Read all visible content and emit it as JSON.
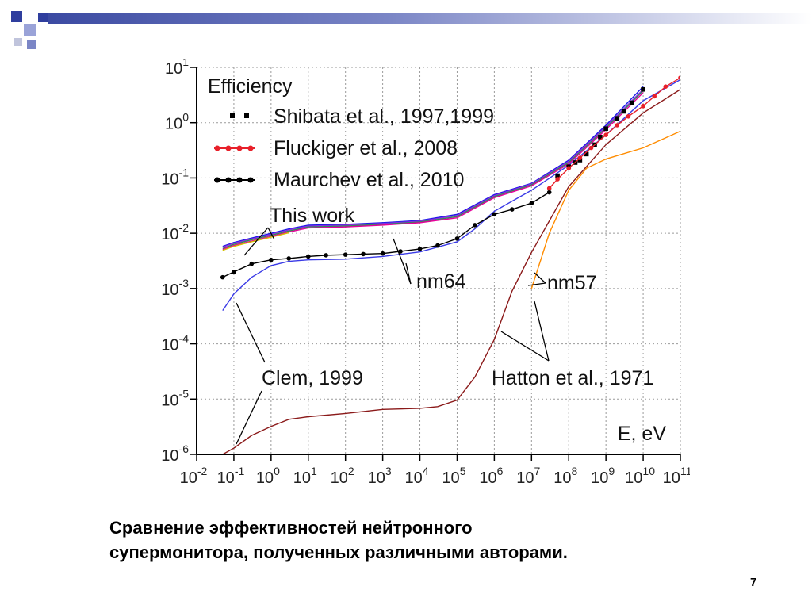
{
  "slide": {
    "caption_lines": [
      "Сравнение эффективностей нейтронного",
      "супермонитора, полученных различными авторами."
    ],
    "page_number": "7",
    "accent_color": "#2f3e9e"
  },
  "chart_data": {
    "type": "line",
    "title": "Efficiency",
    "xlabel": "E, eV",
    "ylabel": "",
    "x_scale": "log",
    "y_scale": "log",
    "xlim": [
      0.01,
      100000000000
    ],
    "ylim": [
      1e-06,
      10
    ],
    "x_ticks": [
      {
        "v": 0.01,
        "base": "10",
        "exp": "-2"
      },
      {
        "v": 0.1,
        "base": "10",
        "exp": "-1"
      },
      {
        "v": 1,
        "base": "10",
        "exp": "0"
      },
      {
        "v": 10,
        "base": "10",
        "exp": "1"
      },
      {
        "v": 100,
        "base": "10",
        "exp": "2"
      },
      {
        "v": 1000,
        "base": "10",
        "exp": "3"
      },
      {
        "v": 10000,
        "base": "10",
        "exp": "4"
      },
      {
        "v": 100000,
        "base": "10",
        "exp": "5"
      },
      {
        "v": 1000000,
        "base": "10",
        "exp": "6"
      },
      {
        "v": 10000000,
        "base": "10",
        "exp": "7"
      },
      {
        "v": 100000000,
        "base": "10",
        "exp": "8"
      },
      {
        "v": 1000000000,
        "base": "10",
        "exp": "9"
      },
      {
        "v": 10000000000,
        "base": "10",
        "exp": "10"
      },
      {
        "v": 100000000000,
        "base": "10",
        "exp": "11"
      }
    ],
    "y_ticks": [
      {
        "v": 10,
        "base": "10",
        "exp": "1"
      },
      {
        "v": 1,
        "base": "10",
        "exp": "0"
      },
      {
        "v": 0.1,
        "base": "10",
        "exp": "-1"
      },
      {
        "v": 0.01,
        "base": "10",
        "exp": "-2"
      },
      {
        "v": 0.001,
        "base": "10",
        "exp": "-3"
      },
      {
        "v": 0.0001,
        "base": "10",
        "exp": "-4"
      },
      {
        "v": 1e-05,
        "base": "10",
        "exp": "-5"
      },
      {
        "v": 1e-06,
        "base": "10",
        "exp": "-6"
      }
    ],
    "legend": [
      {
        "label": "Shibata et al., 1997,1999",
        "color": "#000000",
        "marker": "square"
      },
      {
        "label": "Fluckiger et al., 2008",
        "color": "#e8202a",
        "marker": "circle"
      },
      {
        "label": "Maurchev et al., 2010",
        "color": "#000000",
        "marker": "circle"
      }
    ],
    "series": [
      {
        "color": "#1a1ae6",
        "marker": "none",
        "x": [
          0.05,
          0.1,
          0.3,
          1,
          3,
          10,
          100,
          1000,
          10000,
          100000,
          1000000,
          10000000,
          100000000,
          1000000000,
          10000000000
        ],
        "y": [
          0.0058,
          0.0068,
          0.0082,
          0.01,
          0.012,
          0.014,
          0.0145,
          0.0155,
          0.017,
          0.022,
          0.05,
          0.08,
          0.21,
          0.9,
          4.5
        ]
      },
      {
        "color": "#8a2be2",
        "marker": "none",
        "x": [
          0.05,
          0.1,
          0.3,
          1,
          3,
          10,
          100,
          1000,
          10000,
          100000,
          1000000,
          10000000,
          100000000,
          1000000000,
          10000000000
        ],
        "y": [
          0.0056,
          0.0066,
          0.0079,
          0.0096,
          0.0115,
          0.0135,
          0.014,
          0.015,
          0.0165,
          0.021,
          0.048,
          0.078,
          0.2,
          0.85,
          4
        ]
      },
      {
        "color": "#2e8b57",
        "marker": "none",
        "x": [
          0.05,
          0.1,
          0.3,
          1,
          3,
          10,
          100,
          1000,
          10000,
          100000,
          1000000,
          10000000,
          100000000,
          1000000000,
          10000000000
        ],
        "y": [
          0.0053,
          0.0063,
          0.0076,
          0.0092,
          0.011,
          0.013,
          0.0135,
          0.0145,
          0.016,
          0.02,
          0.046,
          0.075,
          0.19,
          0.8,
          3.8
        ]
      },
      {
        "color": "#e60099",
        "marker": "none",
        "x": [
          0.05,
          0.1,
          0.3,
          1,
          3,
          10,
          100,
          1000,
          10000,
          100000,
          1000000,
          10000000,
          100000000,
          1000000000,
          10000000000
        ],
        "y": [
          0.0051,
          0.006,
          0.0072,
          0.0088,
          0.0105,
          0.0125,
          0.013,
          0.014,
          0.0155,
          0.019,
          0.044,
          0.072,
          0.18,
          0.75,
          3.5
        ]
      },
      {
        "color": "#d4c000",
        "marker": "none",
        "x": [
          0.05,
          0.1,
          0.3,
          1,
          3
        ],
        "y": [
          0.0049,
          0.0058,
          0.007,
          0.0085,
          0.0102
        ]
      },
      {
        "color": "#3a3ae6",
        "marker": "none",
        "x": [
          0.05,
          0.1,
          0.3,
          1,
          3,
          10,
          100,
          1000,
          10000,
          100000,
          300000,
          1000000,
          10000000,
          100000000,
          1000000000,
          10000000000,
          100000000000
        ],
        "y": [
          0.0004,
          0.0008,
          0.0016,
          0.0026,
          0.0031,
          0.0033,
          0.0034,
          0.0038,
          0.0046,
          0.007,
          0.012,
          0.025,
          0.06,
          0.17,
          0.6,
          2.5,
          6
        ]
      },
      {
        "color": "#000000",
        "marker": "circle",
        "x": [
          0.05,
          0.1,
          0.3,
          1,
          3,
          10,
          30,
          100,
          300,
          1000,
          3000,
          10000,
          30000,
          100000,
          300000,
          1000000,
          3000000,
          10000000,
          30000000
        ],
        "y": [
          0.0016,
          0.002,
          0.0028,
          0.0033,
          0.0035,
          0.0038,
          0.004,
          0.0041,
          0.0042,
          0.0043,
          0.0047,
          0.0052,
          0.006,
          0.008,
          0.014,
          0.022,
          0.027,
          0.035,
          0.055
        ]
      },
      {
        "color": "#000000",
        "marker": "square",
        "x": [
          50000000,
          100000000,
          150000000,
          200000000,
          300000000,
          500000000,
          700000000,
          1000000000,
          2000000000,
          3000000000,
          5000000000,
          10000000000
        ],
        "y": [
          0.11,
          0.16,
          0.19,
          0.21,
          0.27,
          0.4,
          0.55,
          0.78,
          1.2,
          1.6,
          2.3,
          4.0
        ]
      },
      {
        "color": "#e8202a",
        "marker": "circle",
        "x": [
          30000000,
          50000000,
          100000000,
          200000000,
          400000000,
          1000000000,
          2000000000,
          4000000000,
          10000000000,
          20000000000,
          40000000000,
          100000000000
        ],
        "y": [
          0.065,
          0.095,
          0.15,
          0.23,
          0.35,
          0.6,
          0.9,
          1.3,
          2.0,
          3.0,
          4.5,
          6.5
        ]
      },
      {
        "color": "#8b1a1a",
        "marker": "none",
        "x": [
          0.05,
          0.1,
          0.3,
          1,
          3,
          10,
          100,
          1000,
          10000,
          30000,
          100000,
          300000,
          1000000,
          3000000,
          10000000,
          100000000,
          1000000000,
          10000000000,
          100000000000
        ],
        "y": [
          1e-06,
          1.3e-06,
          2.2e-06,
          3.2e-06,
          4.3e-06,
          4.8e-06,
          5.5e-06,
          6.5e-06,
          6.8e-06,
          7.3e-06,
          9.6e-06,
          2.5e-05,
          0.00012,
          0.0009,
          0.0045,
          0.07,
          0.4,
          1.5,
          4
        ]
      },
      {
        "color": "#ff8c00",
        "marker": "none",
        "x": [
          10000000,
          30000000,
          100000000,
          300000000,
          1000000000,
          10000000000,
          100000000000
        ],
        "y": [
          0.001,
          0.01,
          0.06,
          0.15,
          0.22,
          0.35,
          0.7
        ]
      }
    ],
    "annotations": [
      {
        "text": "This work"
      },
      {
        "text": "nm64"
      },
      {
        "text": "nm57"
      },
      {
        "text": "Clem, 1999"
      },
      {
        "text": "Hatton et al., 1971"
      }
    ]
  }
}
